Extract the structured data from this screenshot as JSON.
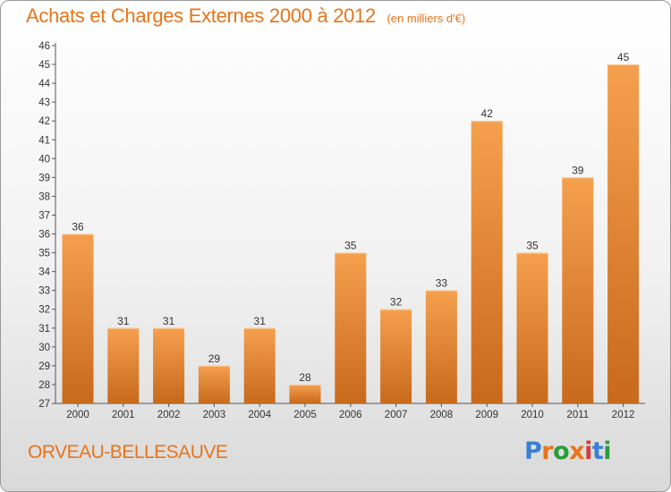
{
  "header": {
    "title": "Achats et Charges Externes 2000 à 2012",
    "unit": "(en milliers d'€)"
  },
  "footer": {
    "commune": "ORVEAU-BELLESAUVE",
    "logo_text": "Proxiti"
  },
  "colors": {
    "accent": "#e8741a",
    "bar_top": "#f5a04e",
    "bar_bottom": "#c8691b",
    "logo": [
      "#3a7fd6",
      "#e8741a",
      "#2d9b3a",
      "#e8741a",
      "#d63a3a",
      "#3a7fd6",
      "#2d9b3a"
    ]
  },
  "chart_data": {
    "type": "bar",
    "title": "Achats et Charges Externes 2000 à 2012",
    "subtitle": "(en milliers d'€)",
    "categories": [
      "2000",
      "2001",
      "2002",
      "2003",
      "2004",
      "2005",
      "2006",
      "2007",
      "2008",
      "2009",
      "2010",
      "2011",
      "2012"
    ],
    "values": [
      36,
      31,
      31,
      29,
      31,
      28,
      35,
      32,
      33,
      42,
      35,
      39,
      45
    ],
    "xlabel": "",
    "ylabel": "",
    "ylim": [
      27,
      46
    ],
    "ytick_step": 1,
    "grid": false,
    "data_labels": true
  }
}
